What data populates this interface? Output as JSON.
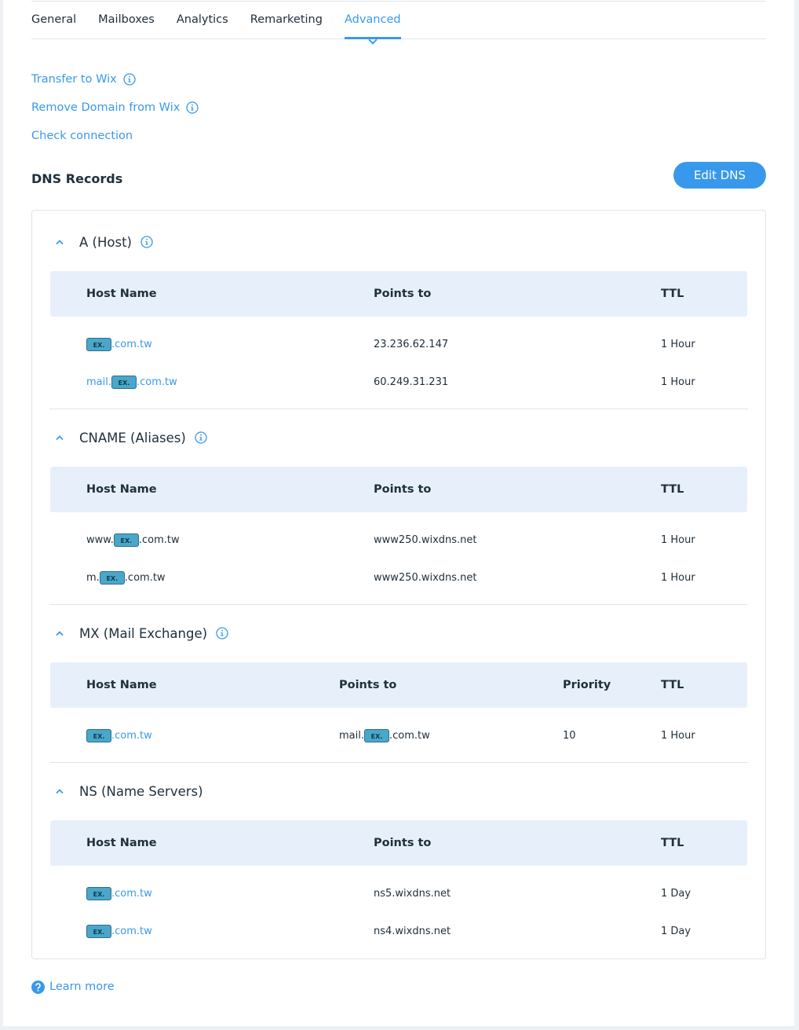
{
  "tabs": [
    "General",
    "Mailboxes",
    "Analytics",
    "Remarketing",
    "Advanced"
  ],
  "links": [
    {
      "text": "Transfer to Wix",
      "info_icon": true
    },
    {
      "text": "Remove Domain from Wix",
      "info_icon": true
    },
    {
      "text": "Check connection",
      "info_icon": false
    }
  ],
  "dns": {
    "title": "DNS Records",
    "button": "Edit DNS",
    "sections": [
      {
        "title": "A (Host)",
        "info_icon": true,
        "host_color": "#3899ec",
        "columns": [
          "Host Name",
          "Points to",
          "TTL"
        ],
        "rows": [
          [
            {
              "badge": "EX.",
              "suffix": ".com.tw"
            },
            "23.236.62.147",
            "1 Hour"
          ],
          [
            {
              "prefix": "mail.",
              "badge": "EX.",
              "suffix": ".com.tw"
            },
            "60.249.31.231",
            "1 Hour"
          ]
        ]
      },
      {
        "title": "CNAME (Aliases)",
        "info_icon": true,
        "host_color": "#20303c",
        "columns": [
          "Host Name",
          "Points to",
          "TTL"
        ],
        "rows": [
          [
            {
              "prefix": "www.",
              "badge": "EX.",
              "suffix": ".com.tw"
            },
            "www250.wixdns.net",
            "1 Hour"
          ],
          [
            {
              "prefix": "m.",
              "badge": "EX.",
              "suffix": ".com.tw"
            },
            "www250.wixdns.net",
            "1 Hour"
          ]
        ]
      },
      {
        "title": "MX (Mail Exchange)",
        "info_icon": true,
        "host_color": "#3899ec",
        "columns": [
          "Host Name",
          "Points to",
          "Priority",
          "TTL"
        ],
        "rows": [
          [
            {
              "badge": "EX.",
              "suffix": ".com.tw"
            },
            {
              "prefix": "mail.",
              "badge": "EX.",
              "suffix": ".com.tw"
            },
            10,
            "1 Hour"
          ]
        ]
      },
      {
        "title": "NS (Name Servers)",
        "info_icon": false,
        "host_color": "#3899ec",
        "columns": [
          "Host Name",
          "Points to",
          "TTL"
        ],
        "rows": [
          [
            {
              "badge": "EX.",
              "suffix": ".com.tw"
            },
            "ns5.wixdns.net",
            "1 Day"
          ],
          [
            {
              "badge": "EX.",
              "suffix": ".com.tw"
            },
            "ns4.wixdns.net",
            "1 Day"
          ]
        ]
      }
    ]
  },
  "learn_more": "Learn more"
}
